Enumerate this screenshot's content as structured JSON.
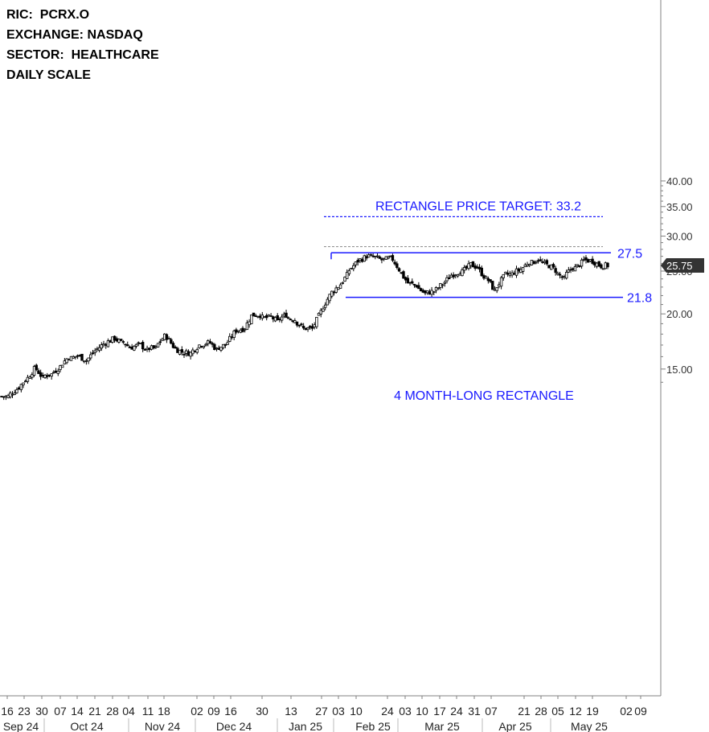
{
  "info": {
    "ric": "RIC:  PCRX.O",
    "exchange": "EXCHANGE: NASDAQ",
    "sector": "SECTOR:  HEALTHCARE",
    "scale": "DAILY SCALE"
  },
  "chart_data": {
    "type": "candlestick",
    "y_scale": "log",
    "ylim": [
      13.3,
      40.5
    ],
    "y_ticks": [
      "15.00",
      "20.00",
      "25.00",
      "30.00",
      "35.00",
      "40.00"
    ],
    "y_tick_values": [
      15,
      20,
      25,
      30,
      35,
      40
    ],
    "last_price_label": "25.75",
    "last_price": 25.75,
    "x_day_labels": [
      "16",
      "23",
      "30",
      "07",
      "14",
      "21",
      "28",
      "04",
      "11",
      "18",
      "02",
      "09",
      "16",
      "30",
      "13",
      "27",
      "03",
      "10",
      "24",
      "03",
      "10",
      "17",
      "24",
      "31",
      "07",
      "21",
      "28",
      "05",
      "12",
      "19",
      "02",
      "09"
    ],
    "x_month_labels": [
      "Sep 24",
      "Oct 24",
      "Nov 24",
      "Dec 24",
      "Jan 25",
      "Feb 25",
      "Mar 25",
      "Apr 25",
      "May 25"
    ],
    "close_series": [
      13.0,
      13.5,
      14.2,
      15.0,
      14.3,
      14.6,
      15.2,
      16.0,
      16.1,
      15.7,
      16.5,
      17.1,
      17.5,
      17.2,
      16.8,
      17.0,
      16.5,
      16.7,
      17.8,
      16.9,
      16.4,
      16.3,
      17.0,
      17.2,
      16.6,
      17.0,
      18.1,
      18.5,
      19.8,
      19.9,
      19.6,
      19.2,
      19.9,
      19.4,
      18.5,
      18.5,
      20.2,
      22.0,
      23.1,
      24.5,
      26.0,
      26.8,
      26.9,
      26.5,
      26.7,
      25.2,
      23.5,
      23.2,
      22.2,
      22.5,
      23.4,
      24.5,
      25.0,
      25.6,
      25.5,
      24.0,
      22.5,
      24.2,
      24.6,
      25.2,
      26.3,
      26.6,
      25.8,
      25.1,
      24.0,
      25.5,
      26.1,
      26.4,
      25.8,
      25.75
    ],
    "series": [
      {
        "name": "Rectangle resistance",
        "value": 27.5
      },
      {
        "name": "Rectangle support",
        "value": 21.8
      },
      {
        "name": "Rectangle price target",
        "value": 33.2
      }
    ],
    "annotations": {
      "resistance_label": "27.5",
      "support_label": "21.8",
      "target_label": "RECTANGLE PRICE TARGET: 33.2",
      "pattern_label": "4 MONTH-LONG RECTANGLE"
    },
    "colors": {
      "annotation": "#1a1aff",
      "candle": "#000000",
      "axis": "#808080",
      "price_badge": "#333333"
    }
  }
}
